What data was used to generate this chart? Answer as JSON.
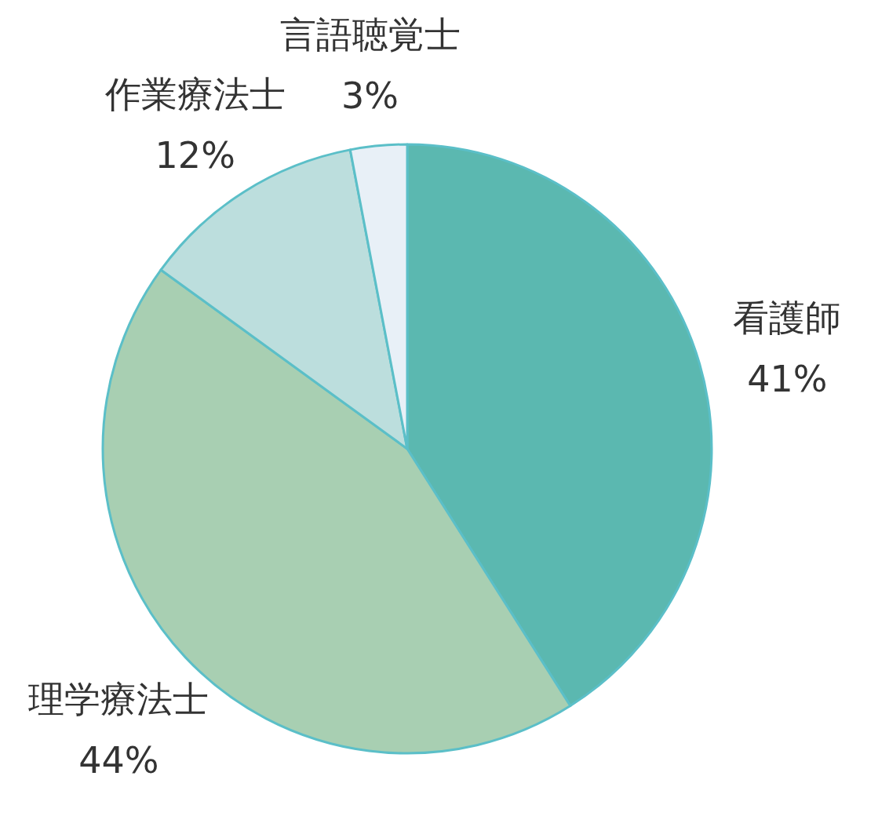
{
  "chart_data": {
    "type": "pie",
    "categories": [
      "看護師",
      "理学療法士",
      "作業療法士",
      "言語聴覚士"
    ],
    "values": [
      41,
      44,
      12,
      3
    ],
    "colors": [
      "#5bb8b0",
      "#a8cfb2",
      "#bcdedd",
      "#e8f0f7"
    ],
    "value_labels": [
      "41%",
      "44%",
      "12%",
      "3%"
    ]
  }
}
